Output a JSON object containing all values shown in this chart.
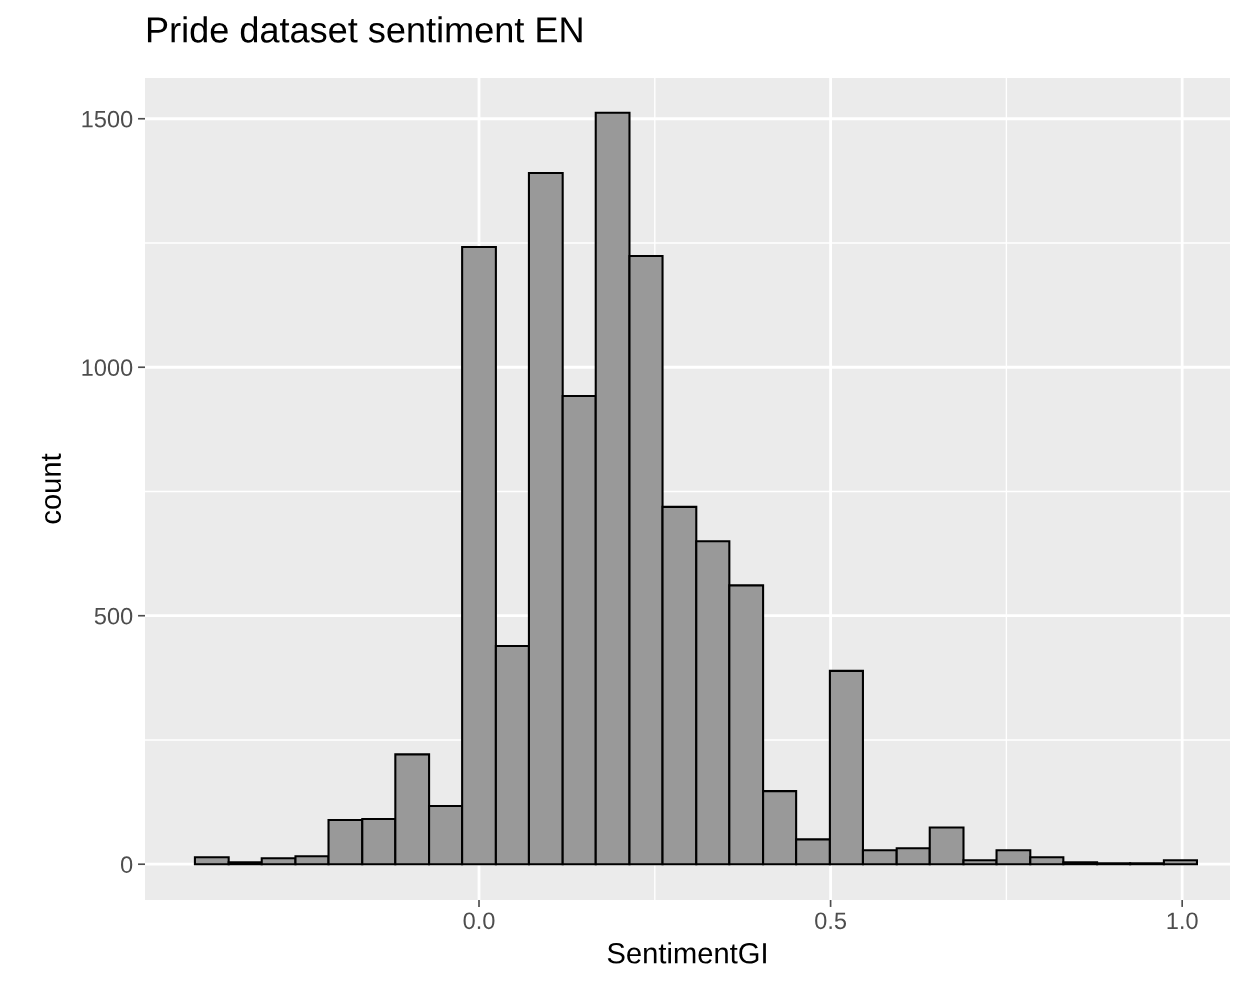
{
  "chart_data": {
    "type": "histogram",
    "title": "Pride dataset sentiment EN",
    "xlabel": "SentimentGI",
    "ylabel": "count",
    "bins": [
      -0.404,
      -0.356,
      -0.309,
      -0.261,
      -0.214,
      -0.166,
      -0.119,
      -0.071,
      -0.024,
      0.024,
      0.071,
      0.119,
      0.166,
      0.214,
      0.261,
      0.309,
      0.356,
      0.404,
      0.451,
      0.499,
      0.546,
      0.594,
      0.641,
      0.689,
      0.736,
      0.784,
      0.831,
      0.879,
      0.926,
      0.974,
      1.021
    ],
    "values": [
      14,
      4,
      12,
      16,
      89,
      91,
      221,
      117,
      1242,
      439,
      1391,
      942,
      1512,
      1224,
      719,
      650,
      561,
      147,
      50,
      389,
      28,
      32,
      74,
      8,
      28,
      14,
      4,
      2,
      2,
      8
    ],
    "color": "#999999",
    "xlim": [
      -0.475,
      1.068
    ],
    "ylim": [
      -72,
      1582
    ],
    "xticks": [
      {
        "value": 0,
        "label": "0.0"
      },
      {
        "value": 0.5,
        "label": "0.5"
      },
      {
        "value": 1,
        "label": "1.0"
      }
    ],
    "yticks": [
      0,
      500,
      1000,
      1500
    ],
    "grid": true
  }
}
